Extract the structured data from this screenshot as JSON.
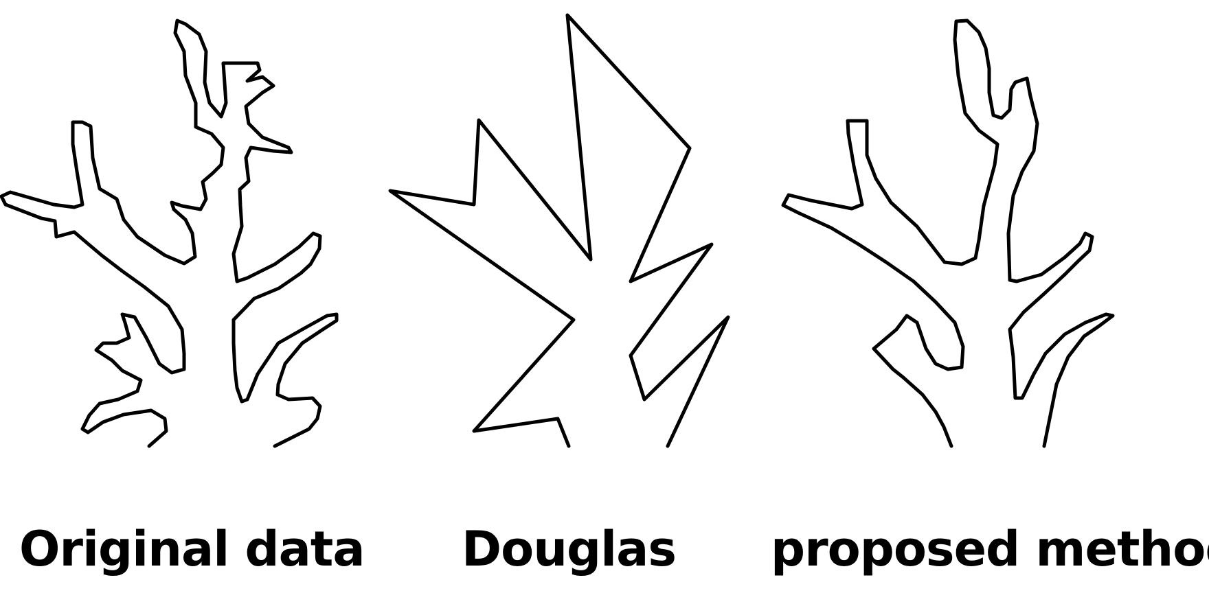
{
  "panels": [
    {
      "id": "original",
      "caption": "Original data"
    },
    {
      "id": "douglas",
      "caption": "Douglas"
    },
    {
      "id": "proposed",
      "caption": "proposed method"
    }
  ],
  "colors": {
    "line": "#000000",
    "background": "#ffffff"
  }
}
